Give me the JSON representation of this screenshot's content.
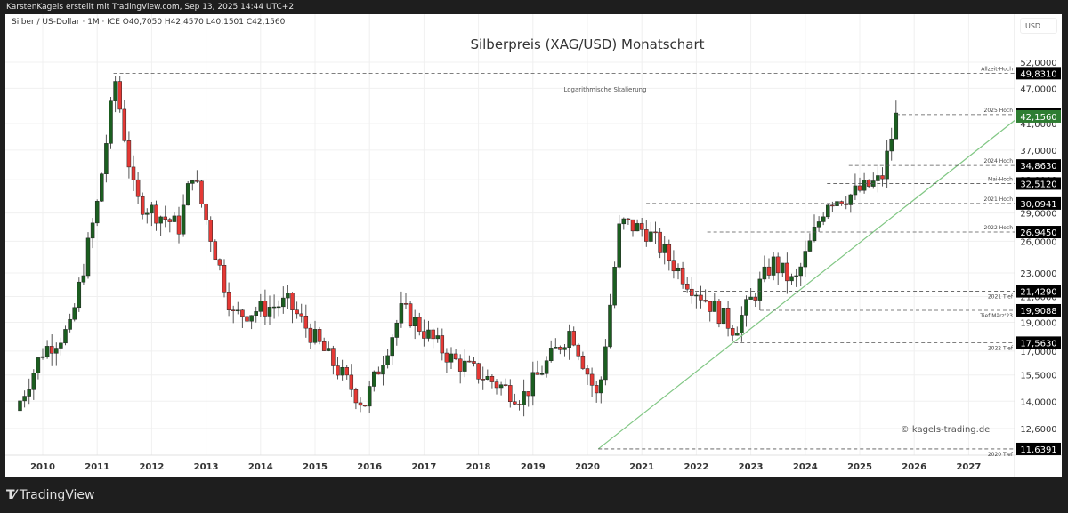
{
  "header": {
    "attribution": "KarstenKagels erstellt mit TradingView.com, Sep 13, 2025 14:44 UTC+2"
  },
  "legend": {
    "symbol_line": "Silber / US-Dollar · 1M · ICE  O40,7050  H42,4570  L40,1501  C42,1560",
    "symbol": "Silber / US-Dollar",
    "interval": "1M",
    "exchange": "ICE",
    "open": "40,7050",
    "high": "42,4570",
    "low": "40,1501",
    "close": "42,1560"
  },
  "price_axis": {
    "currency": "USD",
    "ticks": [
      "52,0000",
      "47,0000",
      "41,0000",
      "37,0000",
      "33,0000",
      "29,0000",
      "26,0000",
      "23,0000",
      "21,0000",
      "19,0000",
      "17,0000",
      "15,5000",
      "14,0000",
      "12,6000"
    ]
  },
  "time_axis": {
    "ticks": [
      "2010",
      "2011",
      "2012",
      "2013",
      "2014",
      "2015",
      "2016",
      "2017",
      "2018",
      "2019",
      "2020",
      "2021",
      "2022",
      "2023",
      "2024",
      "2025",
      "2026",
      "2027"
    ]
  },
  "footer": {
    "brand": "TradingView"
  },
  "colors": {
    "up": "#1b5e20",
    "down": "#e53935",
    "wick": "#555555",
    "trendline": "#81c784",
    "last_price_bg": "#2e7d32",
    "label_bg": "#000000",
    "grid": "#f0f0f0"
  },
  "chart_data": {
    "type": "candlestick",
    "title": "Silberpreis (XAG/USD) Monatschart",
    "subtitle": "Logarithmische Skalierung",
    "watermark": "© kagels-trading.de",
    "scale": "log",
    "ylim": [
      11,
      55
    ],
    "xlabel": "",
    "ylabel": "USD",
    "grid": true,
    "last_price": {
      "value": 42.156,
      "label": "42,1560"
    },
    "levels": [
      {
        "name": "Allzeit-Hoch",
        "value": 49.831,
        "label": "49,8310",
        "start_year": 2011.3
      },
      {
        "name": "2025 Hoch",
        "value": 42.457,
        "label": "42,4570",
        "start_year": 2025.67
      },
      {
        "name": "2024 Hoch",
        "value": 34.863,
        "label": "34,8630",
        "start_year": 2024.8
      },
      {
        "name": "Mai-Hoch",
        "value": 32.512,
        "label": "32,5120",
        "start_year": 2024.4
      },
      {
        "name": "2021 Hoch",
        "value": 30.0941,
        "label": "30,0941",
        "start_year": 2021.08
      },
      {
        "name": "2022 Hoch",
        "value": 26.945,
        "label": "26,9450",
        "start_year": 2022.2
      },
      {
        "name": "2021 Tief",
        "value": 21.429,
        "label": "21,4290",
        "start_year": 2021.75
      },
      {
        "name": "Tief März'23",
        "value": 19.9088,
        "label": "19,9088",
        "start_year": 2023.17
      },
      {
        "name": "2022 Tief",
        "value": 17.563,
        "label": "17,5630",
        "start_year": 2022.7
      },
      {
        "name": "2020 Tief",
        "value": 11.6391,
        "label": "11,6391",
        "start_year": 2020.2
      }
    ],
    "trendline": {
      "from": {
        "year": 2020.2,
        "price": 11.64
      },
      "to": {
        "year": 2026.0,
        "price": 41.5
      }
    },
    "yearly_path": [
      {
        "year": 2009.5,
        "price": 13.5
      },
      {
        "year": 2010.0,
        "price": 17.0
      },
      {
        "year": 2010.5,
        "price": 18.5
      },
      {
        "year": 2011.0,
        "price": 30.0
      },
      {
        "year": 2011.33,
        "price": 48.5
      },
      {
        "year": 2011.7,
        "price": 30.5
      },
      {
        "year": 2012.5,
        "price": 27.5
      },
      {
        "year": 2012.75,
        "price": 34.0
      },
      {
        "year": 2013.5,
        "price": 19.5
      },
      {
        "year": 2014.5,
        "price": 20.5
      },
      {
        "year": 2015.9,
        "price": 13.8
      },
      {
        "year": 2016.6,
        "price": 20.0
      },
      {
        "year": 2017.5,
        "price": 16.5
      },
      {
        "year": 2018.8,
        "price": 14.2
      },
      {
        "year": 2019.7,
        "price": 18.5
      },
      {
        "year": 2020.2,
        "price": 14.0
      },
      {
        "year": 2020.6,
        "price": 28.0
      },
      {
        "year": 2021.1,
        "price": 27.0
      },
      {
        "year": 2021.8,
        "price": 22.5
      },
      {
        "year": 2022.7,
        "price": 18.5
      },
      {
        "year": 2023.4,
        "price": 24.0
      },
      {
        "year": 2023.8,
        "price": 22.0
      },
      {
        "year": 2024.4,
        "price": 30.5
      },
      {
        "year": 2024.8,
        "price": 31.0
      },
      {
        "year": 2025.4,
        "price": 33.0
      },
      {
        "year": 2025.67,
        "price": 42.16
      }
    ]
  }
}
